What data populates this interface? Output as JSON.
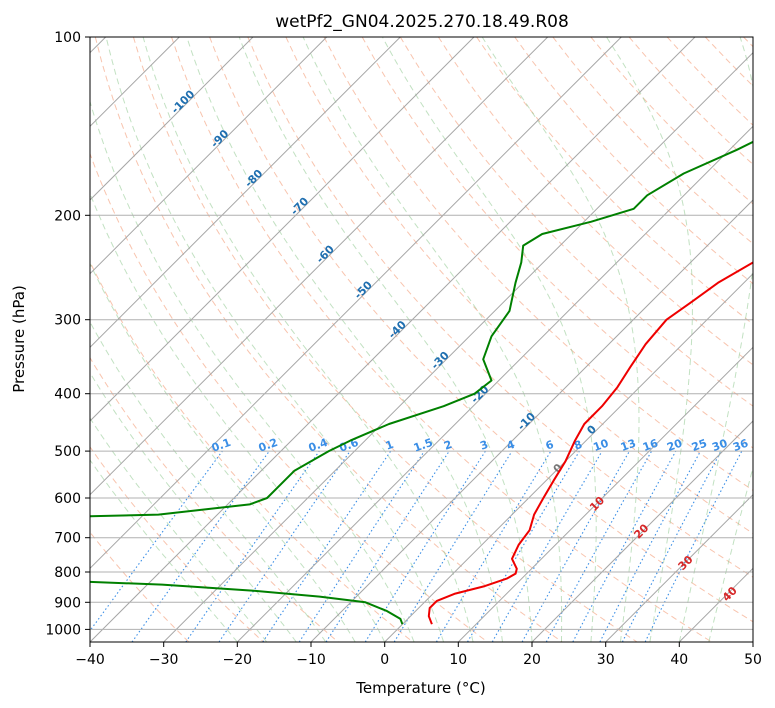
{
  "chart_data": {
    "type": "skew-t",
    "title": "wetPf2_GN04.2025.270.18.49.R08",
    "xlabel": "Temperature (°C)",
    "ylabel": "Pressure (hPa)",
    "xlim": [
      -40,
      50
    ],
    "ylim": [
      1050,
      100
    ],
    "x_ticks": [
      -40,
      -30,
      -20,
      -10,
      0,
      10,
      20,
      30,
      40,
      50
    ],
    "y_ticks": [
      100,
      200,
      300,
      400,
      500,
      600,
      700,
      800,
      900,
      1000
    ],
    "y_scale": "log",
    "grid": true,
    "colors": {
      "temperature": "#ee0000",
      "dewpoint": "#008000",
      "isotherm": "#a6a6a6",
      "dry_adiabat": "#f4a582",
      "moist_adiabat": "#8fc98f",
      "mixing_ratio": "#3a8ee6",
      "skewed_label": "#1f6fb0",
      "moist_label": "#d62728"
    },
    "skewed_isotherm_labels": [
      "-100",
      "-90",
      "-80",
      "-70",
      "-60",
      "-50",
      "-40",
      "-30",
      "-20",
      "-10",
      "0"
    ],
    "mixing_ratio_labels": [
      "0.1",
      "0.2",
      "0.4",
      "0.6",
      "1",
      "1.5",
      "2",
      "3",
      "4",
      "6",
      "8",
      "10",
      "13",
      "16",
      "20",
      "25",
      "30",
      "36"
    ],
    "moist_adiabat_labels": [
      "10",
      "20",
      "30",
      "40"
    ],
    "series": [
      {
        "name": "Temperature",
        "points": [
          [
            100,
            33.5
          ],
          [
            120,
            31.5
          ],
          [
            135,
            29
          ],
          [
            150,
            25.5
          ],
          [
            165,
            21
          ],
          [
            180,
            16
          ],
          [
            190,
            13
          ],
          [
            200,
            10
          ],
          [
            210,
            6.5
          ],
          [
            220,
            3
          ],
          [
            240,
            -1.5
          ],
          [
            260,
            -3.5
          ],
          [
            280,
            -4.5
          ],
          [
            300,
            -5.5
          ],
          [
            330,
            -5
          ],
          [
            360,
            -4
          ],
          [
            390,
            -3
          ],
          [
            420,
            -2.5
          ],
          [
            450,
            -2.5
          ],
          [
            480,
            -1.5
          ],
          [
            520,
            0
          ],
          [
            560,
            1
          ],
          [
            600,
            2
          ],
          [
            640,
            3
          ],
          [
            680,
            4.5
          ],
          [
            720,
            5
          ],
          [
            760,
            6
          ],
          [
            790,
            8
          ],
          [
            805,
            8.5
          ],
          [
            820,
            8
          ],
          [
            845,
            6
          ],
          [
            870,
            3
          ],
          [
            895,
            1.5
          ],
          [
            920,
            1.5
          ],
          [
            950,
            2.5
          ],
          [
            980,
            4
          ]
        ]
      },
      {
        "name": "Dewpoint",
        "points": [
          [
            100,
            -2
          ],
          [
            110,
            -5
          ],
          [
            120,
            -9
          ],
          [
            135,
            -14
          ],
          [
            155,
            -19
          ],
          [
            170,
            -23
          ],
          [
            185,
            -25
          ],
          [
            195,
            -25
          ],
          [
            205,
            -29
          ],
          [
            215,
            -34
          ],
          [
            225,
            -35
          ],
          [
            240,
            -33
          ],
          [
            260,
            -31
          ],
          [
            290,
            -28
          ],
          [
            320,
            -27
          ],
          [
            350,
            -25
          ],
          [
            380,
            -21
          ],
          [
            400,
            -21.5
          ],
          [
            420,
            -24
          ],
          [
            450,
            -29
          ],
          [
            480,
            -32
          ],
          [
            500,
            -33.5
          ],
          [
            540,
            -35.5
          ],
          [
            570,
            -35.5
          ],
          [
            600,
            -35.5
          ],
          [
            615,
            -37
          ],
          [
            640,
            -48
          ],
          [
            660,
            -90
          ],
          [
            690,
            -82
          ],
          [
            710,
            -69
          ],
          [
            730,
            -61
          ],
          [
            745,
            -63
          ],
          [
            755,
            -68
          ],
          [
            780,
            -65
          ],
          [
            790,
            -64
          ],
          [
            805,
            -71
          ],
          [
            815,
            -73
          ],
          [
            822,
            -59
          ],
          [
            840,
            -38
          ],
          [
            860,
            -25
          ],
          [
            880,
            -15
          ],
          [
            900,
            -8
          ],
          [
            930,
            -4
          ],
          [
            960,
            -1
          ],
          [
            980,
            0
          ]
        ]
      }
    ]
  }
}
